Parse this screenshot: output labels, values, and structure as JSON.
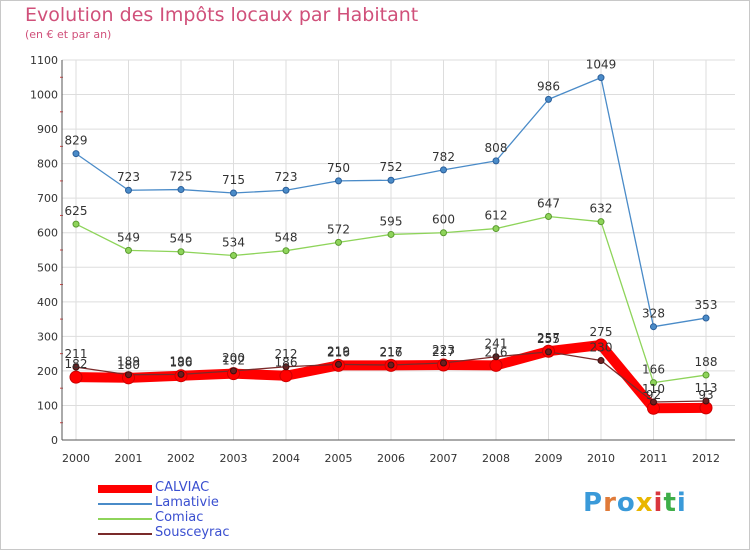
{
  "chart_data": {
    "type": "line",
    "title": "Evolution des Impôts locaux par Habitant",
    "subtitle": "(en € et par an)",
    "xlabel": "",
    "ylabel": "",
    "ylim": [
      0,
      1100
    ],
    "yticks": [
      "0",
      "100",
      "200",
      "300",
      "400",
      "500",
      "600",
      "700",
      "800",
      "900",
      "1000",
      "1100"
    ],
    "categories": [
      "2000",
      "2001",
      "2002",
      "2003",
      "2004",
      "2005",
      "2006",
      "2007",
      "2008",
      "2009",
      "2010",
      "2011",
      "2012"
    ],
    "grid": true,
    "legend_position": "bottom-left",
    "series": [
      {
        "name": "CALVIAC",
        "color": "#ff0000",
        "values": [
          182,
          180,
          186,
          192,
          186,
          216,
          216,
          217,
          216,
          257,
          275,
          92,
          93
        ]
      },
      {
        "name": "Lamativie",
        "color": "#4a8bc8",
        "values": [
          829,
          723,
          725,
          715,
          723,
          750,
          752,
          782,
          808,
          986,
          1049,
          328,
          353
        ]
      },
      {
        "name": "Comiac",
        "color": "#8ed45a",
        "values": [
          625,
          549,
          545,
          534,
          548,
          572,
          595,
          600,
          612,
          647,
          632,
          166,
          188
        ]
      },
      {
        "name": "Sousceyrac",
        "color": "#7a2a2a",
        "values": [
          211,
          189,
          190,
          200,
          212,
          219,
          217,
          223,
          241,
          255,
          230,
          110,
          113
        ]
      }
    ]
  },
  "branding": {
    "logo_text": "Proxiti",
    "logo_colors": [
      "#3a9ad9",
      "#e07b39",
      "#3a9ad9",
      "#e9b600",
      "#d9363e",
      "#3fae49",
      "#3a9ad9"
    ]
  }
}
